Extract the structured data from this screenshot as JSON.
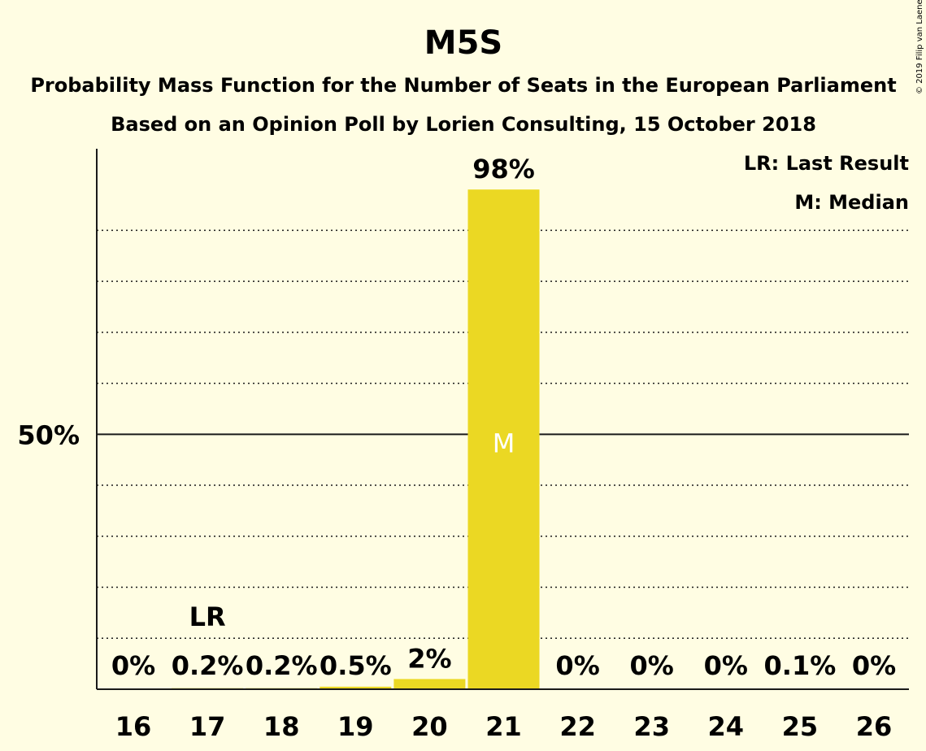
{
  "chart_data": {
    "type": "bar",
    "title": "M5S",
    "subtitle_1": "Probability Mass Function for the Number of Seats in the European Parliament",
    "subtitle_2": "Based on an Opinion Poll by Lorien Consulting, 15 October 2018",
    "copyright": "© 2019 Filip van Laenen",
    "legend": [
      "LR: Last Result",
      "M: Median"
    ],
    "categories": [
      "16",
      "17",
      "18",
      "19",
      "20",
      "21",
      "22",
      "23",
      "24",
      "25",
      "26"
    ],
    "values": [
      0,
      0.2,
      0.2,
      0.5,
      2,
      98,
      0,
      0,
      0,
      0.1,
      0
    ],
    "labels": [
      "0%",
      "0.2%",
      "0.2%",
      "0.5%",
      "2%",
      "98%",
      "0%",
      "0%",
      "0%",
      "0.1%",
      "0%"
    ],
    "ylim": [
      0,
      106
    ],
    "ytick_labels": [
      {
        "value": 50,
        "label": "50%"
      }
    ],
    "gridlines": [
      10,
      20,
      30,
      40,
      60,
      70,
      80,
      90
    ],
    "last_result": {
      "category": "17",
      "label": "LR"
    },
    "median": {
      "category": "21",
      "label": "M"
    },
    "bar_color": "#EBD823",
    "background": "#FFFDE3",
    "grid": true,
    "legend_placement": "top-right"
  }
}
